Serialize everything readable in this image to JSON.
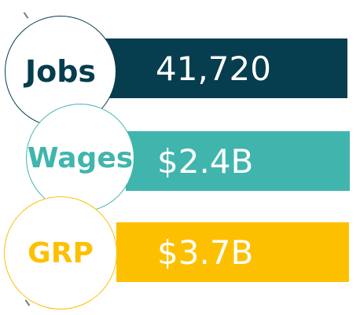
{
  "metrics": [
    {
      "label": "Jobs",
      "value": "41,720",
      "color": "#063d4f"
    },
    {
      "label": "Wages",
      "value": "$2.4B",
      "color": "#40b5ad"
    },
    {
      "label": "GRP",
      "value": "$3.7B",
      "color": "#fdc001"
    }
  ],
  "background": "#ffffff"
}
